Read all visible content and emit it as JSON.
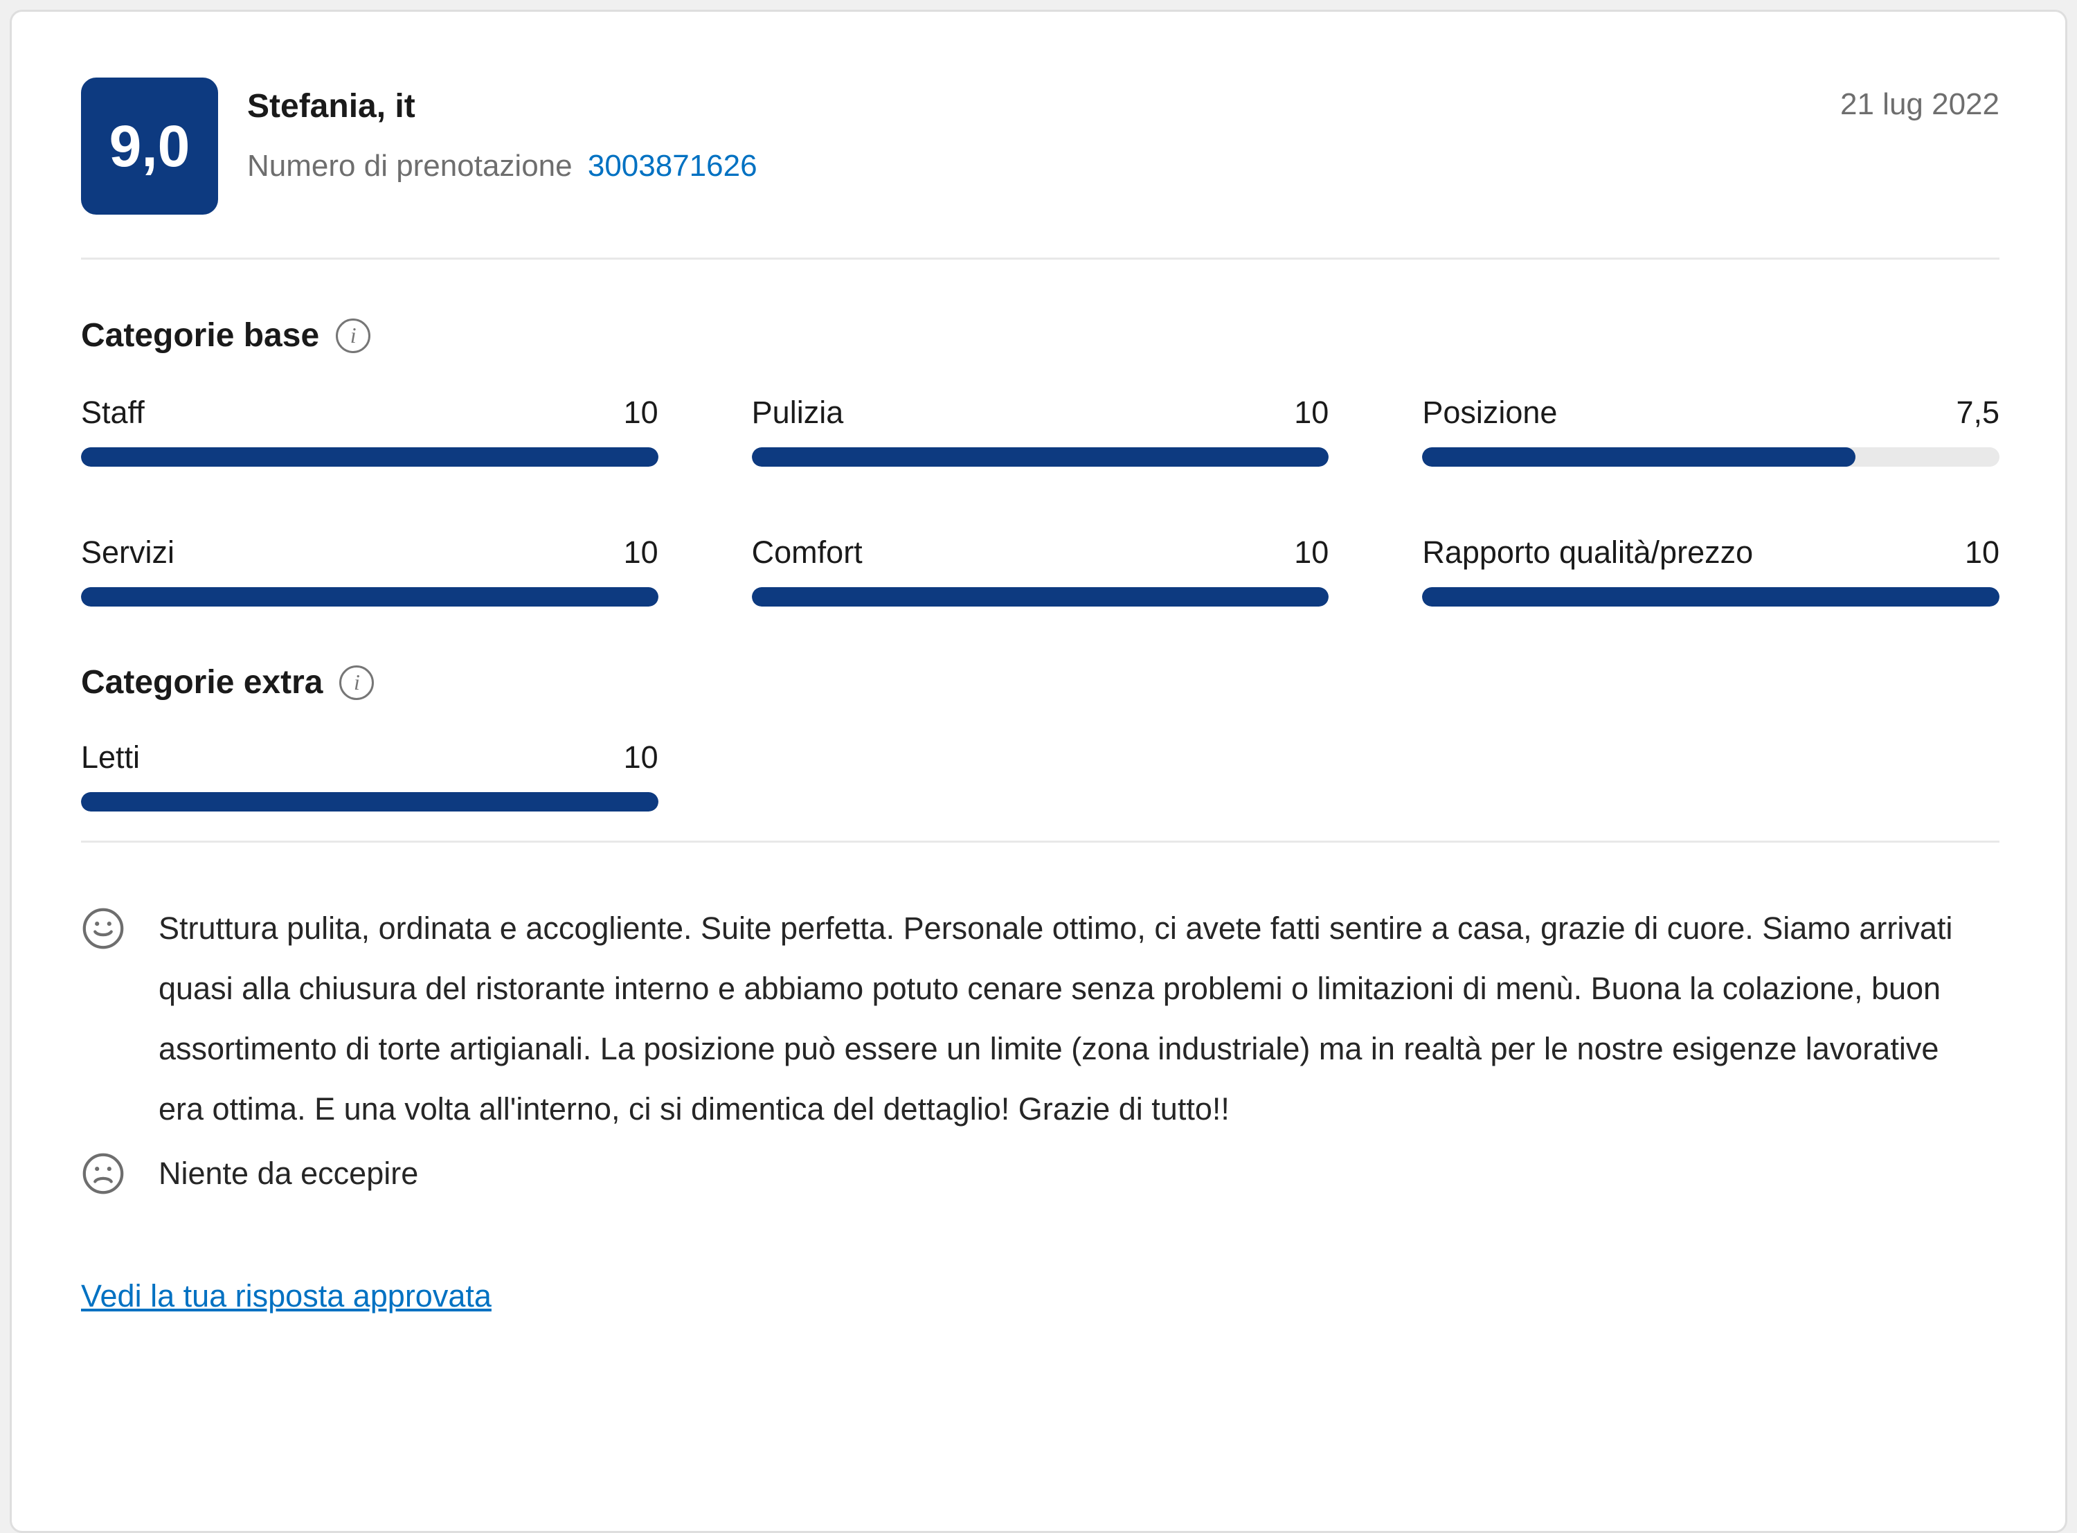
{
  "header": {
    "score": "9,0",
    "reviewer_name": "Stefania, it",
    "booking_number_label": "Numero di prenotazione",
    "booking_number": "3003871626",
    "date": "21 lug 2022"
  },
  "categories_base": {
    "title": "Categorie base",
    "items": [
      {
        "label": "Staff",
        "value": "10",
        "pct": 100
      },
      {
        "label": "Pulizia",
        "value": "10",
        "pct": 100
      },
      {
        "label": "Posizione",
        "value": "7,5",
        "pct": 75
      },
      {
        "label": "Servizi",
        "value": "10",
        "pct": 100
      },
      {
        "label": "Comfort",
        "value": "10",
        "pct": 100
      },
      {
        "label": "Rapporto qualità/prezzo",
        "value": "10",
        "pct": 100
      }
    ]
  },
  "categories_extra": {
    "title": "Categorie extra",
    "items": [
      {
        "label": "Letti",
        "value": "10",
        "pct": 100
      }
    ]
  },
  "comments": {
    "positive": "Struttura pulita, ordinata e accogliente. Suite perfetta. Personale ottimo, ci avete fatti sentire a casa, grazie di cuore. Siamo arrivati quasi alla chiusura del ristorante interno e abbiamo potuto cenare senza problemi o limitazioni di menù. Buona la colazione, buon assortimento di torte artigianali. La posizione può essere un limite (zona industriale) ma in realtà per le nostre esigenze lavorative era ottima. E una volta all'interno, ci si dimentica del dettaglio! Grazie di tutto!!",
    "negative": "Niente da eccepire"
  },
  "footer": {
    "response_link": "Vedi la tua risposta approvata"
  },
  "colors": {
    "accent_navy": "#0d3a80",
    "bar_track": "#e9e9e9",
    "link_blue": "#0071c2",
    "muted_gray": "#6e6e6e",
    "text_dark": "#262626"
  }
}
